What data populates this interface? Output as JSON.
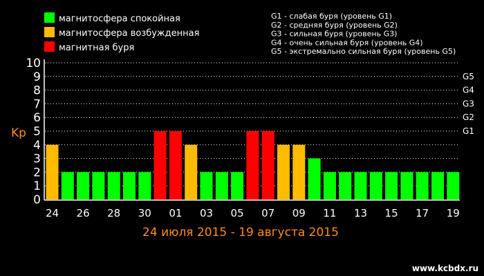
{
  "chart_data": {
    "type": "bar",
    "ylabel": "Kp",
    "subtitle": "24 июля 2015 - 19 августа 2015",
    "ylim": [
      0,
      10
    ],
    "yticks": [
      "0",
      "1",
      "2",
      "3",
      "4",
      "5",
      "6",
      "7",
      "8",
      "9",
      "10"
    ],
    "gscale": [
      {
        "label": "G1",
        "value": 5
      },
      {
        "label": "G2",
        "value": 6
      },
      {
        "label": "G3",
        "value": 7
      },
      {
        "label": "G4",
        "value": 8
      },
      {
        "label": "G5",
        "value": 9
      }
    ],
    "categories": [
      "24",
      "25",
      "26",
      "27",
      "28",
      "29",
      "30",
      "31",
      "01",
      "02",
      "03",
      "04",
      "05",
      "06",
      "07",
      "08",
      "09",
      "10",
      "11",
      "12",
      "13",
      "14",
      "15",
      "16",
      "17",
      "18",
      "19"
    ],
    "visible_xticks": [
      "24",
      "26",
      "28",
      "30",
      "01",
      "03",
      "05",
      "07",
      "09",
      "11",
      "13",
      "15",
      "17",
      "19"
    ],
    "values": [
      4,
      2,
      2,
      2,
      2,
      2,
      2,
      5,
      5,
      4,
      2,
      2,
      2,
      5,
      5,
      4,
      4,
      3,
      2,
      2,
      2,
      2,
      2,
      2,
      2,
      2,
      2
    ],
    "grid": true,
    "legend": [
      {
        "label": "магнитосфера спокойная",
        "color": "#00ff00"
      },
      {
        "label": "магнитосфера возбужденная",
        "color": "#ffbb00"
      },
      {
        "label": "магнитная буря",
        "color": "#ff0000"
      }
    ],
    "storm_levels": [
      "G1 - слабая буря (уровень G1)",
      "G2 - средняя буря (уровень G2)",
      "G3 - сильная буря (уровень G3)",
      "G4 - очень сильная буря (уровень G4)",
      "G5 - экстремально сильная буря (уровень G5)"
    ]
  },
  "colors": {
    "quiet": "#00ff00",
    "active": "#ffbb00",
    "storm": "#ff0000",
    "accent": "#ff8c1a",
    "background": "#000000"
  },
  "watermark": "www.kcbdx.ru"
}
